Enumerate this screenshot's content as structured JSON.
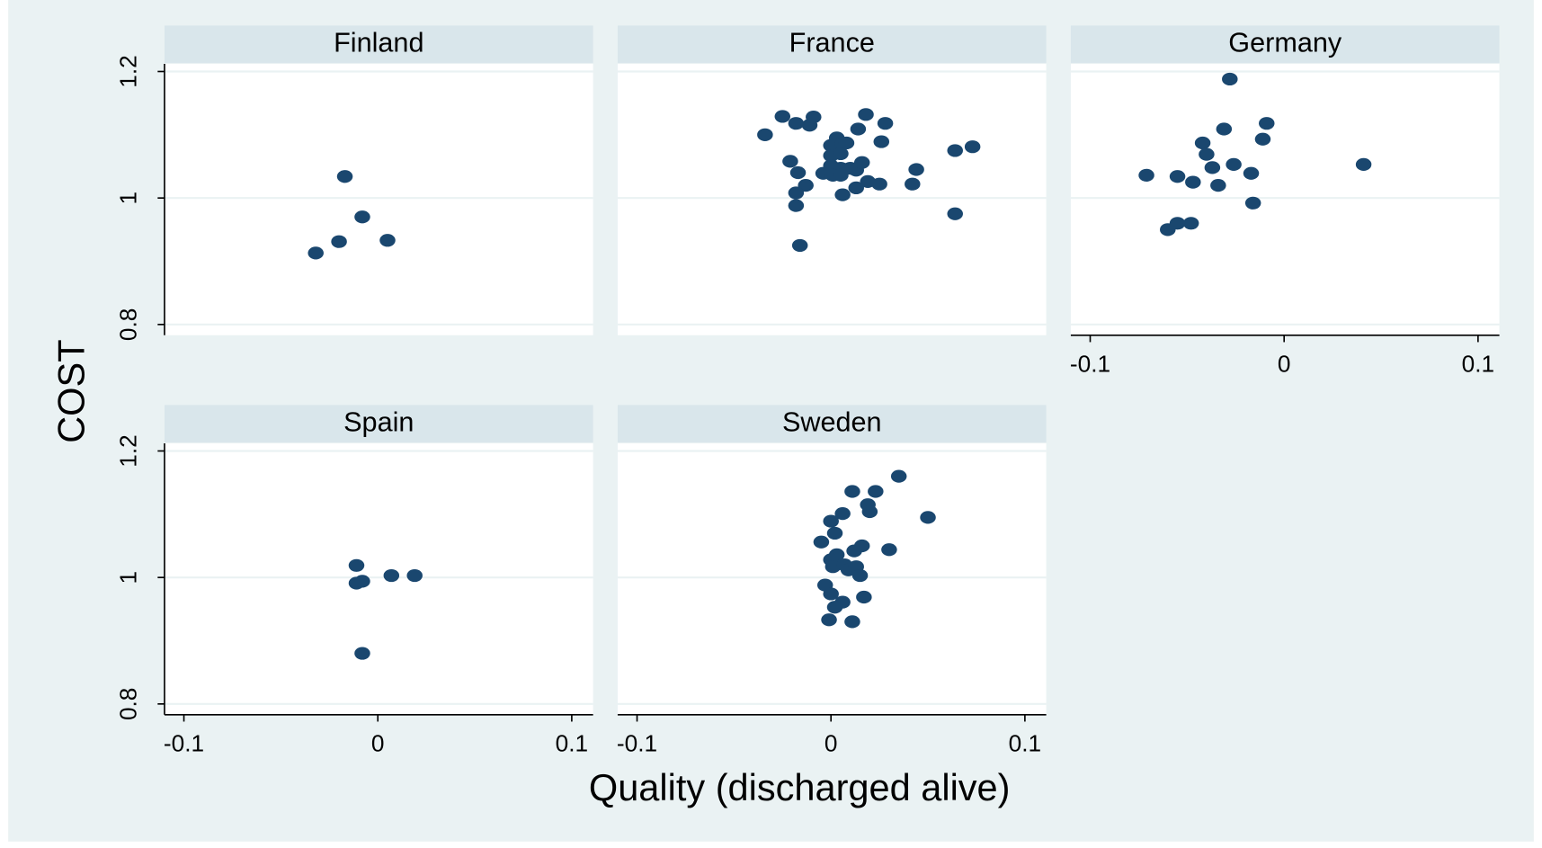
{
  "chart_data": {
    "type": "scatter",
    "x_label": "Quality (discharged alive)",
    "y_label": "COST",
    "xlim": [
      -0.11,
      0.111
    ],
    "ylim": [
      0.783,
      1.212
    ],
    "xticks": [
      -0.1,
      0,
      0.1
    ],
    "yticks": [
      0.8,
      1,
      1.2
    ],
    "grid": true,
    "color": "#1a476f",
    "panels": [
      {
        "title": "Finland",
        "x": [
          -0.017,
          -0.008,
          -0.02,
          0.005,
          -0.032
        ],
        "y": [
          1.034,
          0.97,
          0.931,
          0.933,
          0.913
        ]
      },
      {
        "title": "France",
        "x": [
          -0.034,
          -0.025,
          -0.018,
          -0.011,
          -0.009,
          -0.021,
          -0.017,
          -0.013,
          -0.018,
          -0.018,
          -0.016,
          0.003,
          0,
          0.006,
          0.008,
          0,
          0.005,
          0,
          0.005,
          -0.004,
          0.001,
          0.005,
          0.01,
          0.013,
          0.016,
          0.014,
          0.018,
          0.028,
          0.026,
          0.013,
          0.019,
          0.025,
          0.006,
          0.042,
          0.044,
          0.064,
          0.073,
          0.064
        ],
        "y": [
          1.1,
          1.129,
          1.118,
          1.115,
          1.128,
          1.058,
          1.04,
          1.02,
          1.008,
          0.988,
          0.925,
          1.095,
          1.083,
          1.086,
          1.087,
          1.067,
          1.07,
          1.051,
          1.047,
          1.039,
          1.036,
          1.036,
          1.047,
          1.044,
          1.056,
          1.109,
          1.132,
          1.118,
          1.089,
          1.016,
          1.026,
          1.022,
          1.005,
          1.022,
          1.045,
          1.075,
          1.081,
          0.975
        ]
      },
      {
        "title": "Germany",
        "x": [
          -0.028,
          -0.031,
          -0.009,
          -0.011,
          -0.042,
          -0.04,
          -0.037,
          -0.026,
          -0.017,
          0.041,
          -0.071,
          -0.055,
          -0.047,
          -0.034,
          -0.016,
          -0.06,
          -0.055,
          -0.048
        ],
        "y": [
          1.188,
          1.109,
          1.118,
          1.093,
          1.087,
          1.069,
          1.048,
          1.053,
          1.039,
          1.053,
          1.036,
          1.034,
          1.025,
          1.02,
          0.992,
          0.95,
          0.96,
          0.96
        ]
      },
      {
        "title": "Spain",
        "x": [
          -0.011,
          -0.011,
          -0.008,
          0.007,
          0.019,
          -0.008
        ],
        "y": [
          1.019,
          0.991,
          0.994,
          1.003,
          1.003,
          0.88
        ]
      },
      {
        "title": "Sweden",
        "x": [
          0.035,
          0.011,
          0.023,
          0.019,
          0.02,
          0.05,
          0.006,
          0,
          0.002,
          -0.005,
          0.016,
          0.012,
          0.03,
          0.003,
          0,
          0.001,
          0.007,
          0.009,
          0.013,
          0.015,
          -0.003,
          0,
          0.006,
          0.017,
          0.002,
          -0.001,
          0.011
        ],
        "y": [
          1.16,
          1.136,
          1.136,
          1.115,
          1.104,
          1.095,
          1.101,
          1.089,
          1.07,
          1.056,
          1.05,
          1.042,
          1.044,
          1.036,
          1.028,
          1.017,
          1.02,
          1.012,
          1.017,
          1.003,
          0.988,
          0.974,
          0.961,
          0.969,
          0.953,
          0.933,
          0.93
        ]
      }
    ]
  }
}
